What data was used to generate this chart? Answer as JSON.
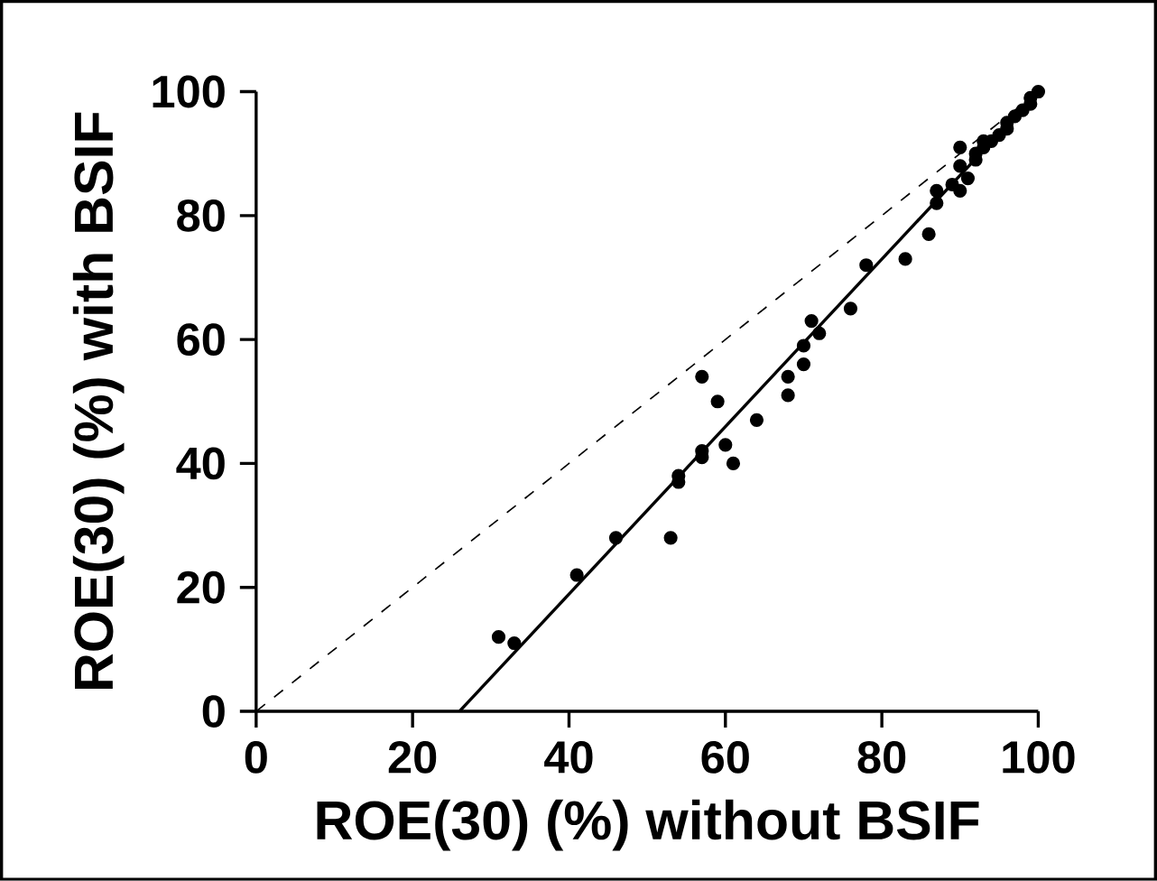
{
  "chart_data": {
    "type": "scatter",
    "xlabel": "ROE(30) (%) without BSIF",
    "ylabel": "ROE(30) (%) with BSIF",
    "xlim": [
      0,
      100
    ],
    "ylim": [
      0,
      100
    ],
    "xticks": [
      0,
      20,
      40,
      60,
      80,
      100
    ],
    "yticks": [
      0,
      20,
      40,
      60,
      80,
      100
    ],
    "marker": "circle",
    "grid": false,
    "series": [
      {
        "color": "#000000",
        "x": [
          31,
          33,
          41,
          46,
          53,
          54,
          54,
          57,
          57,
          57,
          59,
          60,
          61,
          64,
          68,
          68,
          70,
          70,
          71,
          72,
          76,
          78,
          83,
          86,
          87,
          87,
          89,
          90,
          90,
          90,
          91,
          92,
          92,
          93,
          93,
          94,
          95,
          96,
          96,
          97,
          98,
          99,
          99,
          100
        ],
        "values": [
          12,
          11,
          22,
          28,
          28,
          37,
          38,
          41,
          42,
          54,
          50,
          43,
          40,
          47,
          51,
          54,
          56,
          59,
          63,
          61,
          65,
          72,
          73,
          77,
          82,
          84,
          85,
          84,
          88,
          91,
          86,
          89,
          90,
          91,
          92,
          92,
          93,
          94,
          95,
          96,
          97,
          98,
          99,
          100
        ]
      },
      {
        "type": "line",
        "color": "#000000",
        "line_style": "solid",
        "marker": "none",
        "x": [
          26,
          100
        ],
        "values": [
          0,
          100
        ]
      },
      {
        "type": "line",
        "color": "#000000",
        "line_style": "dashed",
        "marker": "none",
        "x": [
          0,
          100
        ],
        "values": [
          0,
          100
        ]
      }
    ]
  }
}
